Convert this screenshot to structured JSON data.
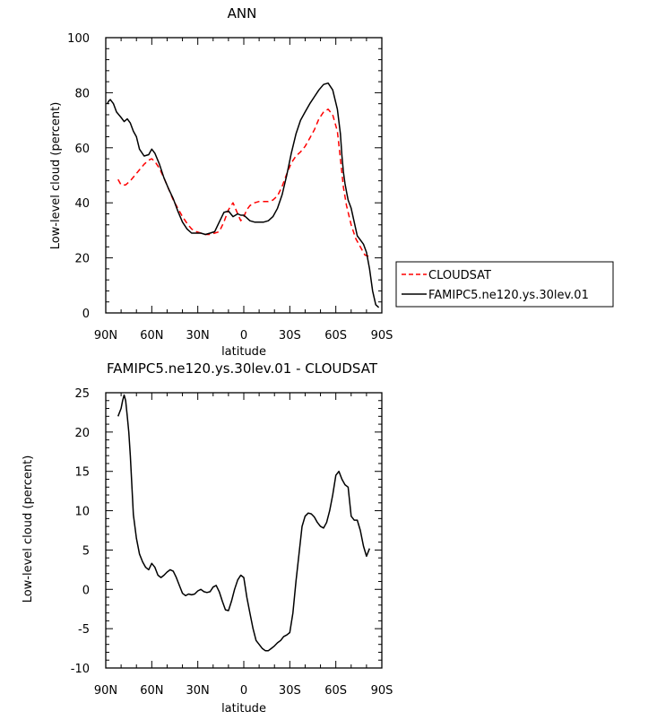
{
  "chart_data": [
    {
      "type": "line",
      "title": "ANN",
      "xlabel": "latitude",
      "ylabel": "Low-level cloud (percent)",
      "xlim": [
        90,
        -90
      ],
      "ylim": [
        0,
        100
      ],
      "x_ticks": [
        90,
        60,
        30,
        0,
        -30,
        -60,
        -90
      ],
      "x_tick_labels": [
        "90N",
        "60N",
        "30N",
        "0",
        "30S",
        "60S",
        "90S"
      ],
      "y_ticks": [
        0,
        20,
        40,
        60,
        80,
        100
      ],
      "y_tick_labels": [
        "0",
        "20",
        "40",
        "60",
        "80",
        "100"
      ],
      "legend_position": "right, outside plot",
      "series": [
        {
          "name": "CLOUDSAT",
          "color": "#ff0000",
          "dash": "dashed",
          "x": [
            82,
            80,
            77,
            74,
            71,
            68,
            65,
            62,
            60,
            58,
            55,
            52,
            49,
            46,
            43,
            40,
            37,
            34,
            31,
            28,
            25,
            22,
            19,
            16,
            13,
            10,
            7,
            4,
            2,
            0,
            -2,
            -4,
            -7,
            -10,
            -13,
            -16,
            -19,
            -22,
            -25,
            -28,
            -31,
            -34,
            -37,
            -40,
            -43,
            -46,
            -49,
            -52,
            -55,
            -58,
            -61,
            -63,
            -65,
            -67,
            -70,
            -73,
            -76,
            -79,
            -82
          ],
          "y": [
            48.5,
            46.5,
            46.5,
            48,
            50,
            52,
            54,
            55.5,
            56,
            55,
            52.5,
            49,
            45,
            41,
            38,
            35,
            32.5,
            30.5,
            29.5,
            29,
            28.5,
            28.5,
            29,
            29.5,
            33,
            37.5,
            40,
            36,
            33.5,
            35,
            37.5,
            39,
            40,
            40.5,
            40.5,
            40.5,
            41,
            42.5,
            46,
            50.5,
            54.5,
            57,
            58.5,
            60.5,
            63.5,
            66.5,
            70.5,
            73,
            74,
            72,
            66,
            56,
            45.5,
            39,
            32,
            27,
            24,
            21,
            20.5
          ]
        },
        {
          "name": "FAMIPC5.ne120.ys.30lev.01",
          "color": "#000000",
          "dash": "solid",
          "x": [
            89,
            88,
            87,
            85,
            83,
            80,
            78,
            76,
            74,
            72,
            70,
            68,
            65,
            62,
            60,
            58,
            55,
            52,
            49,
            46,
            43,
            40,
            37,
            34,
            31,
            28,
            25,
            22,
            19,
            16,
            13,
            10,
            7,
            4,
            2,
            0,
            -2,
            -4,
            -7,
            -10,
            -13,
            -16,
            -19,
            -22,
            -25,
            -28,
            -31,
            -34,
            -37,
            -40,
            -43,
            -46,
            -49,
            -52,
            -55,
            -58,
            -61,
            -63,
            -64,
            -65,
            -66,
            -67,
            -68,
            -70,
            -72,
            -74,
            -76,
            -78,
            -80,
            -82,
            -84,
            -86,
            -88
          ],
          "y": [
            76,
            77,
            77.5,
            76,
            73,
            71,
            69.5,
            70.5,
            69,
            66,
            64,
            59.5,
            57,
            57.5,
            59.5,
            58,
            54,
            49,
            45,
            41.5,
            37,
            33,
            30.5,
            29,
            29,
            29,
            28.5,
            29,
            29.5,
            33,
            36.5,
            37,
            35,
            36,
            35.5,
            35.5,
            34.5,
            33.5,
            33,
            33,
            33,
            33.5,
            35,
            38,
            43,
            50,
            58,
            65,
            70,
            73,
            76,
            78.5,
            81,
            83,
            83.5,
            81,
            74,
            65,
            57,
            51,
            47,
            44,
            41,
            38,
            33,
            28,
            26.5,
            25,
            22,
            16,
            8,
            3,
            2
          ]
        }
      ]
    },
    {
      "type": "line",
      "title": "FAMIPC5.ne120.ys.30lev.01 - CLOUDSAT",
      "xlabel": "latitude",
      "ylabel": "Low-level cloud (percent)",
      "xlim": [
        90,
        -90
      ],
      "ylim": [
        -10,
        25
      ],
      "x_ticks": [
        90,
        60,
        30,
        0,
        -30,
        -60,
        -90
      ],
      "x_tick_labels": [
        "90N",
        "60N",
        "30N",
        "0",
        "30S",
        "60S",
        "90S"
      ],
      "y_ticks": [
        -10,
        -5,
        0,
        5,
        10,
        15,
        20,
        25
      ],
      "y_tick_labels": [
        "-10",
        "-5",
        "0",
        "5",
        "10",
        "15",
        "20",
        "25"
      ],
      "series": [
        {
          "color": "#000000",
          "dash": "solid",
          "x": [
            82,
            81,
            80,
            79,
            78,
            77,
            76,
            75,
            74,
            72,
            70,
            68,
            66,
            64,
            62,
            60,
            58,
            56,
            54,
            52,
            50,
            48,
            46,
            44,
            42,
            40,
            38,
            36,
            34,
            32,
            30,
            28,
            26,
            24,
            22,
            20,
            18,
            16,
            14,
            12,
            10,
            8,
            6,
            4,
            2,
            0,
            -2,
            -4,
            -6,
            -8,
            -10,
            -12,
            -14,
            -16,
            -18,
            -20,
            -22,
            -24,
            -26,
            -28,
            -30,
            -32,
            -34,
            -36,
            -38,
            -40,
            -42,
            -44,
            -46,
            -48,
            -50,
            -52,
            -54,
            -56,
            -58,
            -60,
            -62,
            -64,
            -66,
            -68,
            -70,
            -72,
            -74,
            -76,
            -78,
            -80,
            -82
          ],
          "y": [
            22,
            22.5,
            23,
            24,
            24.7,
            24,
            22,
            20,
            17,
            9.5,
            6.5,
            4.5,
            3.5,
            2.8,
            2.5,
            3.3,
            2.8,
            1.8,
            1.5,
            1.8,
            2.2,
            2.5,
            2.3,
            1.5,
            0.5,
            -0.5,
            -0.8,
            -0.6,
            -0.7,
            -0.6,
            -0.2,
            0,
            -0.3,
            -0.4,
            -0.3,
            0.3,
            0.5,
            -0.3,
            -1.5,
            -2.6,
            -2.7,
            -1.5,
            0,
            1.2,
            1.8,
            1.5,
            -1,
            -3,
            -5,
            -6.5,
            -7,
            -7.5,
            -7.8,
            -7.8,
            -7.5,
            -7.2,
            -6.8,
            -6.5,
            -6,
            -5.8,
            -5.5,
            -3,
            1,
            4.5,
            8,
            9.3,
            9.7,
            9.6,
            9.2,
            8.5,
            8,
            7.8,
            8.5,
            10,
            12,
            14.5,
            15,
            14,
            13.3,
            13,
            9.3,
            8.8,
            8.8,
            7.5,
            5.5,
            4.2,
            5.2
          ]
        }
      ]
    }
  ]
}
